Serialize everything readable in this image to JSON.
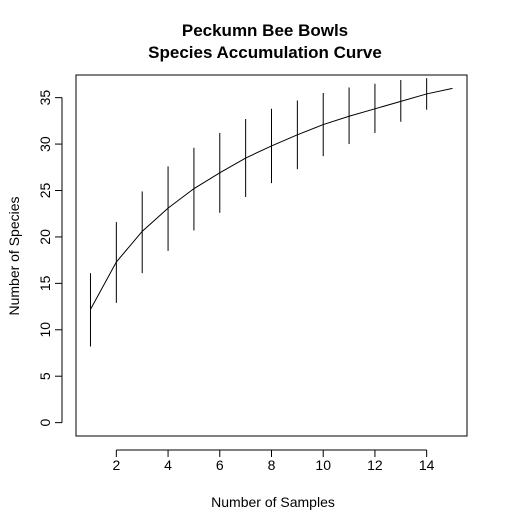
{
  "chart_data": {
    "type": "line",
    "title": [
      "Peckumn Bee Bowls",
      "Species Accumulation Curve"
    ],
    "xlabel": "Number of Samples",
    "ylabel": "Number of Species",
    "xlim": [
      0.44,
      15.56
    ],
    "ylim": [
      -1.44,
      37.44
    ],
    "xticks": [
      2,
      4,
      6,
      8,
      10,
      12,
      14
    ],
    "yticks": [
      0,
      5,
      10,
      15,
      20,
      25,
      30,
      35
    ],
    "grid": false,
    "legend": "none",
    "series": [
      {
        "x": [
          1,
          2,
          3,
          4,
          5,
          6,
          7,
          8,
          9,
          10,
          11,
          12,
          13,
          14,
          15
        ],
        "y": [
          12.2,
          17.3,
          20.6,
          23.1,
          25.2,
          26.9,
          28.5,
          29.8,
          31.0,
          32.1,
          33.0,
          33.8,
          34.6,
          35.4,
          36.0
        ],
        "error_low": [
          8.2,
          12.9,
          16.1,
          18.5,
          20.7,
          22.6,
          24.3,
          25.8,
          27.3,
          28.7,
          30.0,
          31.2,
          32.4,
          33.7,
          36.0
        ],
        "error_high": [
          16.1,
          21.6,
          24.9,
          27.6,
          29.6,
          31.2,
          32.7,
          33.8,
          34.7,
          35.5,
          36.1,
          36.5,
          36.9,
          37.1,
          36.0
        ]
      }
    ],
    "line_color": "#000000",
    "errorbar_color": "#000000"
  }
}
